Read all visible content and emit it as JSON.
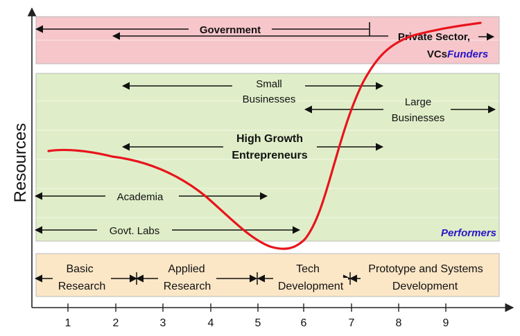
{
  "axes": {
    "ylabel": "Resources",
    "x_ticks": [
      "1",
      "2",
      "3",
      "4",
      "5",
      "6",
      "7",
      "8",
      "9"
    ]
  },
  "bands": {
    "funders": {
      "label": "Funders",
      "color": "#f6c6cb"
    },
    "performers": {
      "label": "Performers",
      "color": "#dfeec8"
    },
    "stages": {
      "color": "#fbe6c6"
    }
  },
  "funders": {
    "government": "Government",
    "private_line1": "Private Sector,",
    "private_line2": "VCs"
  },
  "performers": {
    "small_line1": "Small",
    "small_line2": "Businesses",
    "large_line1": "Large",
    "large_line2": "Businesses",
    "hg_line1": "High Growth",
    "hg_line2": "Entrepreneurs",
    "academia": "Academia",
    "govt_labs": "Govt. Labs"
  },
  "stages": [
    {
      "line1": "Basic",
      "line2": "Research"
    },
    {
      "line1": "Applied",
      "line2": "Research"
    },
    {
      "line1": "Tech",
      "line2": "Development"
    },
    {
      "line1": "Prototype and Systems",
      "line2": "Development"
    }
  ],
  "colors": {
    "curve": "#e8141c",
    "accent_label": "#2a14c8",
    "arrow": "#111111"
  }
}
